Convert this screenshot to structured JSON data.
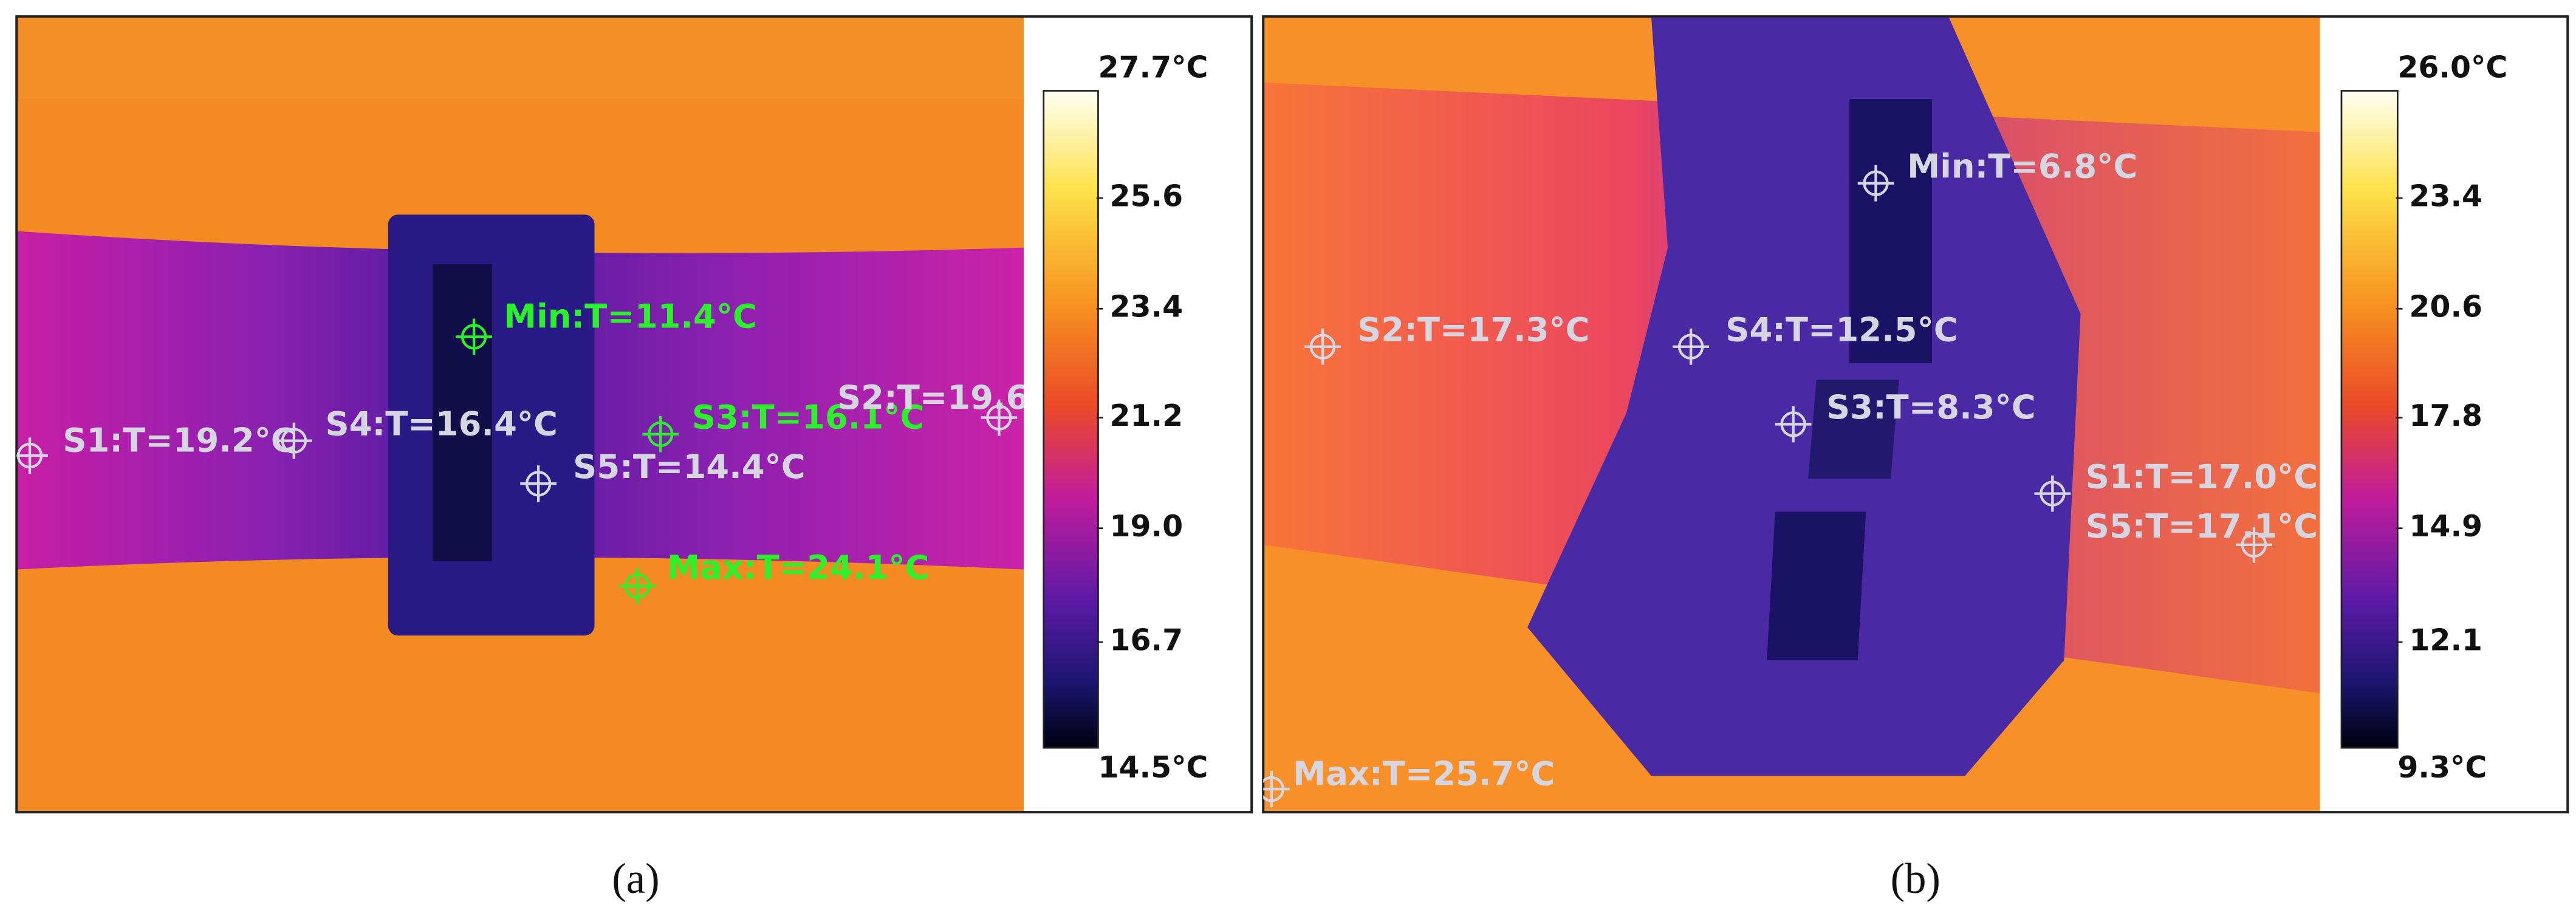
{
  "panels": [
    {
      "caption": "(a)",
      "spots": [
        "S1:T=19.2°C",
        "S4:T=16.4°C",
        "Min:T=11.4°C",
        "S3:T=16.1°C",
        "S2:T=19.6",
        "S5:T=14.4°C",
        "Max:T=24.1°C"
      ],
      "colorbar": {
        "max": "27.7°C",
        "min": "14.5°C",
        "ticks": [
          "25.6",
          "23.4",
          "21.2",
          "19.0",
          "16.7"
        ]
      }
    },
    {
      "caption": "(b)",
      "spots": [
        "Min:T=6.8°C",
        "S2:T=17.3°C",
        "S4:T=12.5°C",
        "S3:T=8.3°C",
        "S1:T=17.0°C",
        "S5:T=17.1°C",
        "Max:T=25.7°C"
      ],
      "colorbar": {
        "max": "26.0°C",
        "min": "9.3°C",
        "ticks": [
          "23.4",
          "20.6",
          "17.8",
          "14.9",
          "12.1"
        ]
      }
    }
  ]
}
